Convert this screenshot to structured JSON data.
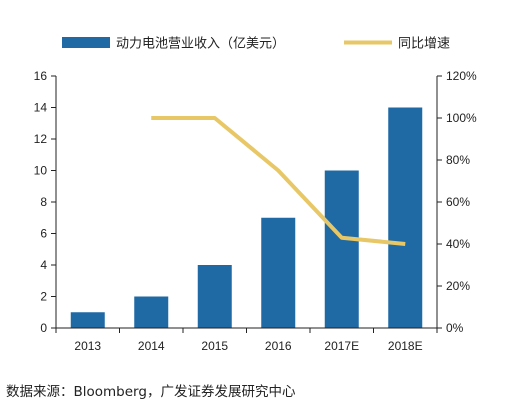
{
  "chart_data": {
    "type": "bar",
    "categories": [
      "2013",
      "2014",
      "2015",
      "2016",
      "2017E",
      "2018E"
    ],
    "series": [
      {
        "name": "动力电池营业收入（亿美元）",
        "type": "bar",
        "axis": "left",
        "color": "#1f6aa5",
        "values": [
          1,
          2,
          4,
          7,
          10,
          14
        ]
      },
      {
        "name": "同比增速",
        "type": "line",
        "axis": "right",
        "color": "#e8c766",
        "values": [
          null,
          1.0,
          1.0,
          0.75,
          0.43,
          0.4
        ]
      }
    ],
    "y_left": {
      "ylim": [
        0,
        16
      ],
      "ticks": [
        "0",
        "2",
        "4",
        "6",
        "8",
        "10",
        "12",
        "14",
        "16"
      ]
    },
    "y_right": {
      "ylim": [
        0,
        1.2
      ],
      "ticks": [
        "0%",
        "20%",
        "40%",
        "60%",
        "80%",
        "100%",
        "120%"
      ]
    },
    "legend_position": "top",
    "grid": false
  },
  "source_text": "数据来源：Bloomberg，广发证券发展研究中心"
}
